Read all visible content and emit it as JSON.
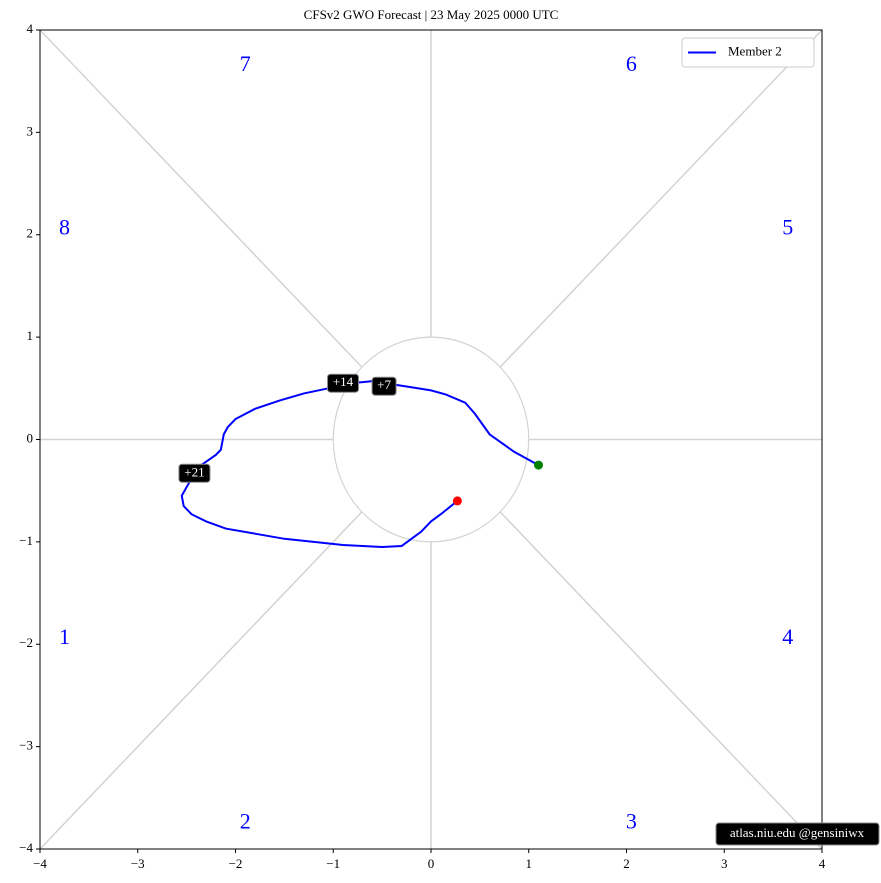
{
  "chart_data": {
    "type": "line",
    "title": "CFSv2 GWO Forecast   |   23  May  2025 0000 UTC",
    "xlim": [
      -4,
      4
    ],
    "ylim": [
      -4,
      4
    ],
    "xticks": [
      {
        "value": -4,
        "label": "−4"
      },
      {
        "value": -3,
        "label": "−3"
      },
      {
        "value": -2,
        "label": "−2"
      },
      {
        "value": -1,
        "label": "−1"
      },
      0,
      1,
      2,
      3,
      4
    ],
    "yticks": [
      {
        "value": -4,
        "label": "−4"
      },
      {
        "value": -3,
        "label": "−3"
      },
      {
        "value": -2,
        "label": "−2"
      },
      {
        "value": -1,
        "label": "−1"
      },
      0,
      1,
      2,
      3,
      4
    ],
    "series": [
      {
        "name": "Member 2",
        "color": "#0000ff",
        "x": [
          1.1,
          0.85,
          0.6,
          0.45,
          0.35,
          0.15,
          0,
          -0.2,
          -0.4,
          -0.5,
          -0.6,
          -0.7,
          -0.85,
          -1.05,
          -1.3,
          -1.55,
          -1.8,
          -2.0,
          -2.08,
          -2.12,
          -2.15,
          -2.2,
          -2.35,
          -2.45,
          -2.55,
          -2.53,
          -2.45,
          -2.3,
          -2.1,
          -1.8,
          -1.5,
          -1.2,
          -0.9,
          -0.5,
          -0.3,
          -0.2,
          -0.1,
          0,
          0.1,
          0.27
        ],
        "y": [
          -0.25,
          -0.12,
          0.05,
          0.25,
          0.36,
          0.44,
          0.48,
          0.51,
          0.54,
          0.56,
          0.57,
          0.56,
          0.55,
          0.5,
          0.45,
          0.38,
          0.3,
          0.2,
          0.12,
          0.05,
          -0.1,
          -0.15,
          -0.25,
          -0.38,
          -0.55,
          -0.65,
          -0.73,
          -0.8,
          -0.87,
          -0.92,
          -0.97,
          -1.0,
          -1.03,
          -1.05,
          -1.04,
          -0.97,
          -0.9,
          -0.8,
          -0.73,
          -0.6
        ]
      }
    ],
    "start_color": "#008000",
    "end_color": "#ff0000",
    "annotations": [
      {
        "text": "+7",
        "x": -0.48,
        "y": 0.52
      },
      {
        "text": "+14",
        "x": -0.9,
        "y": 0.55
      },
      {
        "text": "+21",
        "x": -2.42,
        "y": -0.33
      }
    ],
    "phase_labels": [
      "1",
      "2",
      "3",
      "4",
      "5",
      "6",
      "7",
      "8"
    ],
    "legend": "upper right",
    "credit": "atlas.niu.edu  @gensiniwx"
  }
}
